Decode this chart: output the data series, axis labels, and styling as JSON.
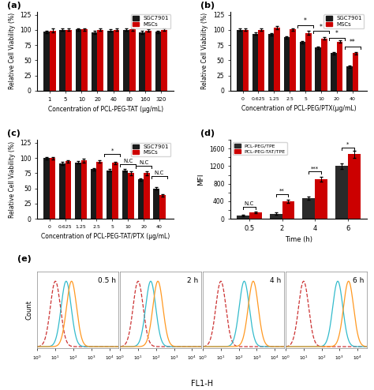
{
  "panel_a": {
    "categories": [
      "1",
      "5",
      "10",
      "20",
      "40",
      "80",
      "160",
      "320"
    ],
    "sgc": [
      97,
      100,
      101,
      96,
      99,
      100,
      96,
      97
    ],
    "msc": [
      99,
      100,
      101,
      100,
      100,
      101,
      99,
      100
    ],
    "sgc_err": [
      2,
      2,
      2,
      2,
      2,
      2,
      2,
      2
    ],
    "msc_err": [
      3,
      2,
      2,
      2,
      2,
      2,
      2,
      2
    ],
    "xlabel": "Concentration of PCL-PEG-TAT (μg/mL)",
    "ylabel": "Relative Cell Viability (%)",
    "ylim": [
      0,
      130
    ],
    "yticks": [
      0,
      25,
      50,
      75,
      100,
      125
    ]
  },
  "panel_b": {
    "categories": [
      "0",
      "0.625",
      "1.25",
      "2.5",
      "5",
      "10",
      "20",
      "40"
    ],
    "sgc": [
      100,
      94,
      93,
      88,
      80,
      71,
      62,
      40
    ],
    "msc": [
      100,
      100,
      104,
      101,
      95,
      86,
      81,
      62
    ],
    "sgc_err": [
      2,
      2,
      2,
      2,
      2,
      2,
      2,
      2
    ],
    "msc_err": [
      2,
      2,
      3,
      2,
      3,
      2,
      2,
      2
    ],
    "xlabel": "Concentration of PCL-PEG/PTX(μg/mL)",
    "ylabel": "Relative Cell Viability (%)",
    "ylim": [
      0,
      130
    ],
    "yticks": [
      0,
      25,
      50,
      75,
      100,
      125
    ]
  },
  "panel_c": {
    "categories": [
      "0",
      "0.625",
      "1.25",
      "2.5",
      "5",
      "10",
      "20",
      "40"
    ],
    "sgc": [
      100,
      91,
      93,
      82,
      80,
      80,
      65,
      50
    ],
    "msc": [
      100,
      95,
      96,
      94,
      92,
      75,
      75,
      39
    ],
    "sgc_err": [
      2,
      3,
      2,
      2,
      2,
      2,
      2,
      2
    ],
    "msc_err": [
      2,
      2,
      3,
      2,
      2,
      3,
      3,
      2
    ],
    "xlabel": "Concentration of PCL-PEG-TAT/PTX (μg/mL)",
    "ylabel": "Relative Cell Viability (%)",
    "ylim": [
      0,
      130
    ],
    "yticks": [
      0,
      25,
      50,
      75,
      100,
      125
    ]
  },
  "panel_d": {
    "times": [
      "0.5",
      "2",
      "4",
      "6"
    ],
    "pcl_peg": [
      75,
      120,
      470,
      1200
    ],
    "pcl_peg_tat": [
      145,
      395,
      900,
      1470
    ],
    "pcl_peg_err": [
      15,
      25,
      40,
      60
    ],
    "pcl_peg_tat_err": [
      20,
      35,
      55,
      80
    ],
    "xlabel": "Time (h)",
    "ylabel": "MFI",
    "ylim": [
      0,
      1800
    ],
    "yticks": [
      0,
      200,
      400,
      600,
      800,
      1000,
      1200,
      1400,
      1600,
      1800
    ]
  },
  "flow": {
    "time_labels": [
      "0.5 h",
      "2 h",
      "4 h",
      "6 h"
    ],
    "red_peaks": [
      1.0,
      1.0,
      1.0,
      1.0
    ],
    "cyan_peaks": [
      1.6,
      1.7,
      2.3,
      2.9
    ],
    "orange_peaks": [
      1.9,
      2.1,
      2.8,
      3.5
    ],
    "sigma": 0.28
  },
  "colors": {
    "sgc": "#1a1a1a",
    "msc": "#cc0000",
    "pcl_peg": "#2a2a2a",
    "pcl_peg_tat": "#cc0000",
    "flow_red": "#cc3333",
    "flow_cyan": "#33bbcc",
    "flow_orange": "#ff9922"
  }
}
